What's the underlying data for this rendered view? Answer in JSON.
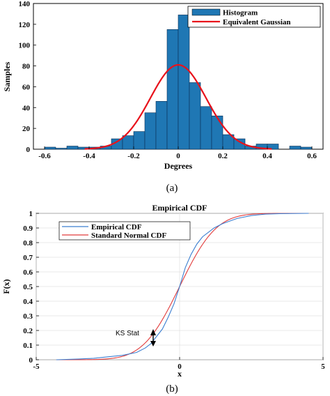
{
  "chart_data": [
    {
      "type": "bar",
      "caption": "(a)",
      "xlabel": "Degrees",
      "ylabel": "Samples",
      "xlim": [
        -0.65,
        0.65
      ],
      "ylim": [
        0,
        140
      ],
      "xticks": [
        "-0.6",
        "-0.4",
        "-0.2",
        "0",
        "0.2",
        "0.4",
        "0.6"
      ],
      "yticks": [
        "0",
        "20",
        "40",
        "60",
        "80",
        "100",
        "120",
        "140"
      ],
      "bin_width": 0.05,
      "legend_position": "top-right",
      "bar_color": "#1f77b4",
      "curve_color": "#e8121b",
      "series": [
        {
          "name": "Histogram",
          "bin_centers": [
            -0.575,
            -0.525,
            -0.475,
            -0.425,
            -0.375,
            -0.325,
            -0.275,
            -0.225,
            -0.175,
            -0.125,
            -0.075,
            -0.025,
            0.025,
            0.075,
            0.125,
            0.175,
            0.225,
            0.275,
            0.325,
            0.375,
            0.425,
            0.475,
            0.525,
            0.575
          ],
          "values": [
            2,
            1,
            3,
            2,
            2,
            3,
            10,
            13,
            17,
            35,
            46,
            115,
            129,
            64,
            41,
            32,
            14,
            10,
            3,
            5,
            5,
            0,
            3,
            2
          ]
        },
        {
          "name": "Equivalent Gaussian",
          "peak": 81,
          "mean": 0,
          "sigma": 0.125
        }
      ]
    },
    {
      "type": "line",
      "caption": "(b)",
      "title": "Empirical CDF",
      "xlabel": "x",
      "ylabel": "F(x)",
      "xlim": [
        -5,
        5
      ],
      "ylim": [
        0,
        1
      ],
      "xticks": [
        "-5",
        "0",
        "5"
      ],
      "yticks": [
        "0",
        "0.1",
        "0.2",
        "0.3",
        "0.4",
        "0.5",
        "0.6",
        "0.7",
        "0.8",
        "0.9",
        "1"
      ],
      "legend_position": "top-left",
      "grid": true,
      "annotation": "KS Stat",
      "series": [
        {
          "name": "Empirical CDF",
          "color": "#3c7fd1",
          "x": [
            -4.3,
            -3.5,
            -3.0,
            -2.5,
            -2.0,
            -1.5,
            -1.2,
            -1.0,
            -0.8,
            -0.6,
            -0.4,
            -0.2,
            0.0,
            0.2,
            0.4,
            0.6,
            0.8,
            1.0,
            1.2,
            1.5,
            2.0,
            2.5,
            3.0,
            3.5,
            4.5
          ],
          "y": [
            0.0,
            0.005,
            0.01,
            0.02,
            0.03,
            0.05,
            0.08,
            0.11,
            0.16,
            0.21,
            0.29,
            0.38,
            0.5,
            0.63,
            0.72,
            0.79,
            0.84,
            0.87,
            0.9,
            0.93,
            0.965,
            0.985,
            0.995,
            0.998,
            1.0
          ]
        },
        {
          "name": "Standard Normal CDF",
          "color": "#e23b3b",
          "distribution": "normal",
          "mean": 0,
          "sigma": 1
        }
      ]
    }
  ]
}
